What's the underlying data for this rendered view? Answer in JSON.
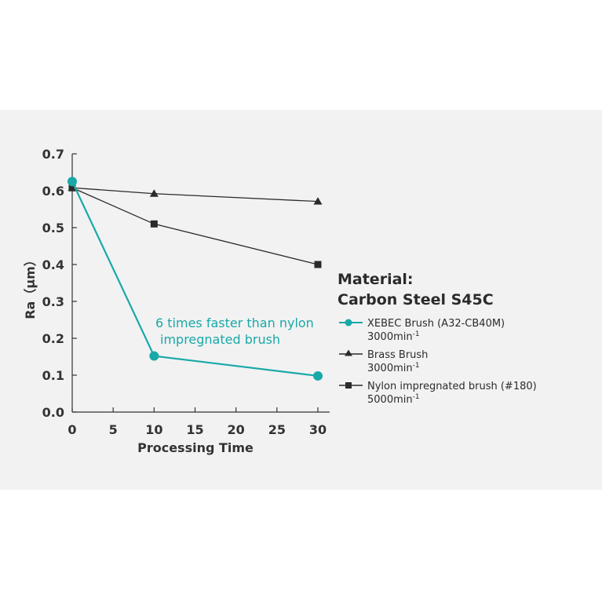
{
  "colors": {
    "xebec": "#19a8a8",
    "brass": "#2b2b2b",
    "nylon": "#2b2b2b",
    "axis": "#333333",
    "panel": "#f2f2f2"
  },
  "legend": {
    "title_line1": "Material:",
    "title_line2": "Carbon Steel S45C",
    "items": [
      {
        "label": "XEBEC Brush (A32-CB40M)",
        "speed": "3000min",
        "sup": "-1",
        "marker": "circle"
      },
      {
        "label": "Brass Brush",
        "speed": "3000min",
        "sup": "-1",
        "marker": "triangle"
      },
      {
        "label": "Nylon impregnated brush (#180)",
        "speed": "5000min",
        "sup": "-1",
        "marker": "square"
      }
    ]
  },
  "chart_data": {
    "type": "line",
    "title": "",
    "xlabel": "Processing Time",
    "ylabel": "Ra（μm）",
    "xlim": [
      0,
      30
    ],
    "ylim": [
      0,
      0.7
    ],
    "xticks": [
      "0",
      "5",
      "10",
      "15",
      "20",
      "25",
      "30"
    ],
    "yticks": [
      "0.0",
      "0.1",
      "0.2",
      "0.3",
      "0.4",
      "0.5",
      "0.6",
      "0.7"
    ],
    "grid": false,
    "legend_position": "right",
    "annotation": {
      "line1": "6 times faster than nylon",
      "line2": "impregnated brush"
    },
    "series": [
      {
        "name": "XEBEC Brush (A32-CB40M)",
        "x": [
          0,
          10,
          30
        ],
        "values": [
          0.625,
          0.152,
          0.098
        ]
      },
      {
        "name": "Brass Brush",
        "x": [
          0,
          10,
          30
        ],
        "values": [
          0.608,
          0.592,
          0.571
        ]
      },
      {
        "name": "Nylon impregnated brush (#180)",
        "x": [
          0,
          10,
          30
        ],
        "values": [
          0.608,
          0.51,
          0.4
        ]
      }
    ]
  }
}
